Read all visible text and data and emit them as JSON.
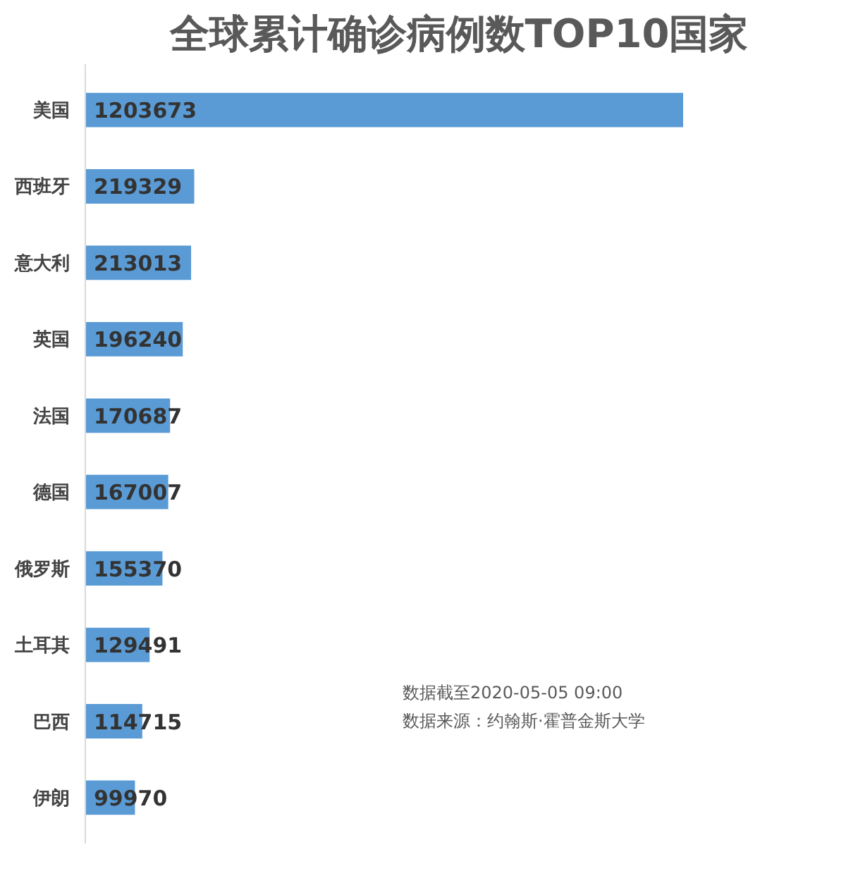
{
  "chart_data": {
    "type": "bar",
    "orientation": "horizontal",
    "title": "全球累计确诊病例数TOP10国家",
    "categories": [
      "美国",
      "西班牙",
      "意大利",
      "英国",
      "法国",
      "德国",
      "俄罗斯",
      "土耳其",
      "巴西",
      "伊朗"
    ],
    "values": [
      1203673,
      219329,
      213013,
      196240,
      170687,
      167007,
      155370,
      129491,
      114715,
      99970
    ],
    "color": "#5b9bd5",
    "data_labels": true,
    "grid": false,
    "annotations": [
      "数据截至2020-05-05 09:00",
      "数据来源：约翰斯·霍普金斯大学"
    ]
  }
}
